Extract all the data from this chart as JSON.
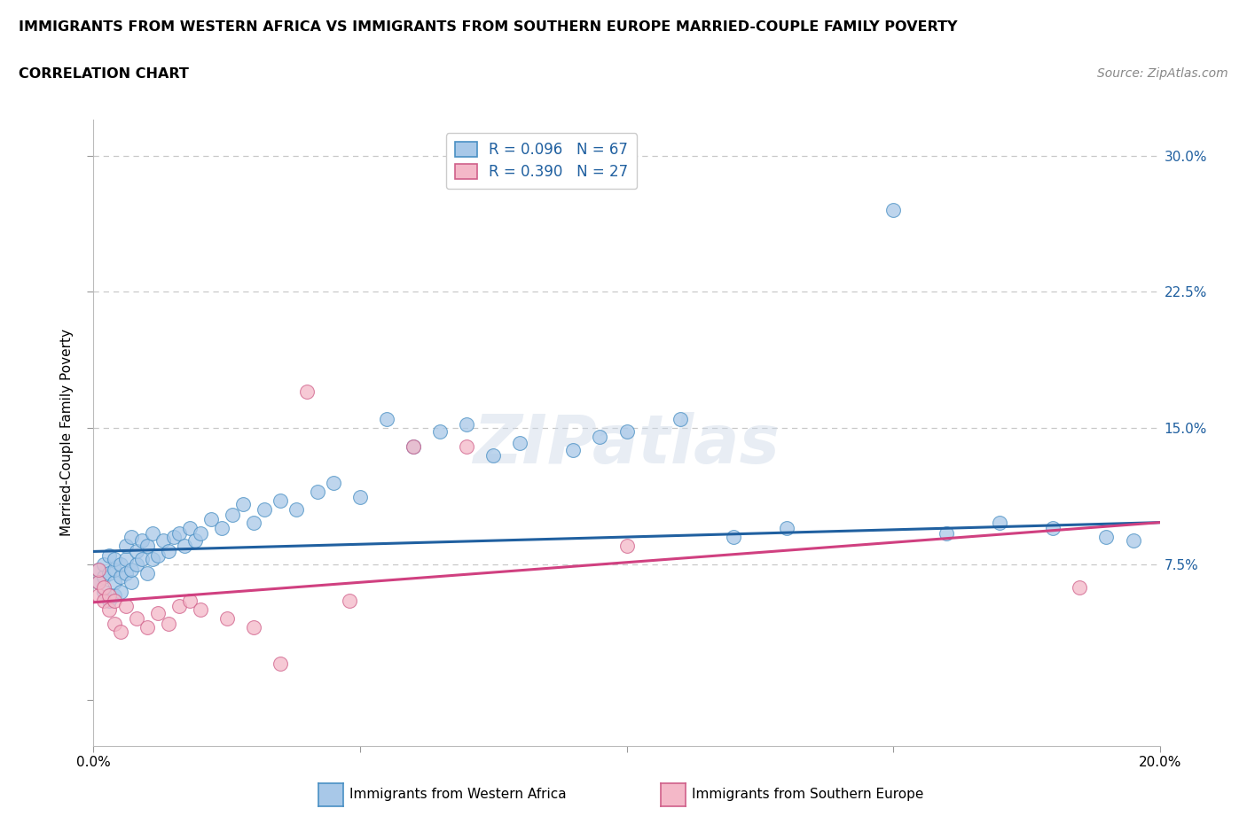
{
  "title_line1": "IMMIGRANTS FROM WESTERN AFRICA VS IMMIGRANTS FROM SOUTHERN EUROPE MARRIED-COUPLE FAMILY POVERTY",
  "title_line2": "CORRELATION CHART",
  "source_text": "Source: ZipAtlas.com",
  "ylabel": "Married-Couple Family Poverty",
  "xlim": [
    0.0,
    0.2
  ],
  "ylim": [
    -0.025,
    0.32
  ],
  "xticks": [
    0.0,
    0.05,
    0.1,
    0.15,
    0.2
  ],
  "xtick_labels": [
    "0.0%",
    "",
    "",
    "",
    "20.0%"
  ],
  "yticks": [
    0.0,
    0.075,
    0.15,
    0.225,
    0.3
  ],
  "ytick_labels_right": [
    "",
    "7.5%",
    "15.0%",
    "22.5%",
    "30.0%"
  ],
  "legend_label1": "Immigrants from Western Africa",
  "legend_label2": "Immigrants from Southern Europe",
  "R1": 0.096,
  "N1": 67,
  "R2": 0.39,
  "N2": 27,
  "color1": "#a8c8e8",
  "color2": "#f4b8c8",
  "edge_color1": "#4a90c4",
  "edge_color2": "#d0608a",
  "line_color1": "#2060a0",
  "line_color2": "#d04080",
  "watermark": "ZIPatlas",
  "blue_x": [
    0.001,
    0.001,
    0.002,
    0.002,
    0.002,
    0.003,
    0.003,
    0.003,
    0.004,
    0.004,
    0.004,
    0.004,
    0.005,
    0.005,
    0.005,
    0.006,
    0.006,
    0.006,
    0.007,
    0.007,
    0.007,
    0.008,
    0.008,
    0.009,
    0.009,
    0.01,
    0.01,
    0.011,
    0.011,
    0.012,
    0.013,
    0.014,
    0.015,
    0.016,
    0.017,
    0.018,
    0.019,
    0.02,
    0.022,
    0.024,
    0.026,
    0.028,
    0.03,
    0.032,
    0.035,
    0.038,
    0.042,
    0.045,
    0.05,
    0.055,
    0.06,
    0.065,
    0.07,
    0.075,
    0.08,
    0.09,
    0.095,
    0.1,
    0.11,
    0.12,
    0.13,
    0.15,
    0.16,
    0.17,
    0.18,
    0.19,
    0.195
  ],
  "blue_y": [
    0.065,
    0.072,
    0.06,
    0.068,
    0.075,
    0.055,
    0.07,
    0.08,
    0.058,
    0.065,
    0.072,
    0.078,
    0.06,
    0.068,
    0.075,
    0.07,
    0.078,
    0.085,
    0.065,
    0.072,
    0.09,
    0.075,
    0.082,
    0.078,
    0.088,
    0.07,
    0.085,
    0.078,
    0.092,
    0.08,
    0.088,
    0.082,
    0.09,
    0.092,
    0.085,
    0.095,
    0.088,
    0.092,
    0.1,
    0.095,
    0.102,
    0.108,
    0.098,
    0.105,
    0.11,
    0.105,
    0.115,
    0.12,
    0.112,
    0.155,
    0.14,
    0.148,
    0.152,
    0.135,
    0.142,
    0.138,
    0.145,
    0.148,
    0.155,
    0.09,
    0.095,
    0.27,
    0.092,
    0.098,
    0.095,
    0.09,
    0.088
  ],
  "pink_x": [
    0.001,
    0.001,
    0.001,
    0.002,
    0.002,
    0.003,
    0.003,
    0.004,
    0.004,
    0.005,
    0.006,
    0.008,
    0.01,
    0.012,
    0.014,
    0.016,
    0.018,
    0.02,
    0.025,
    0.03,
    0.035,
    0.04,
    0.048,
    0.06,
    0.07,
    0.1,
    0.185
  ],
  "pink_y": [
    0.058,
    0.065,
    0.072,
    0.055,
    0.062,
    0.05,
    0.058,
    0.042,
    0.055,
    0.038,
    0.052,
    0.045,
    0.04,
    0.048,
    0.042,
    0.052,
    0.055,
    0.05,
    0.045,
    0.04,
    0.02,
    0.17,
    0.055,
    0.14,
    0.14,
    0.085,
    0.062
  ],
  "blue_line_x0": 0.0,
  "blue_line_y0": 0.082,
  "blue_line_x1": 0.2,
  "blue_line_y1": 0.098,
  "pink_line_x0": 0.0,
  "pink_line_y0": 0.054,
  "pink_line_x1": 0.2,
  "pink_line_y1": 0.098
}
